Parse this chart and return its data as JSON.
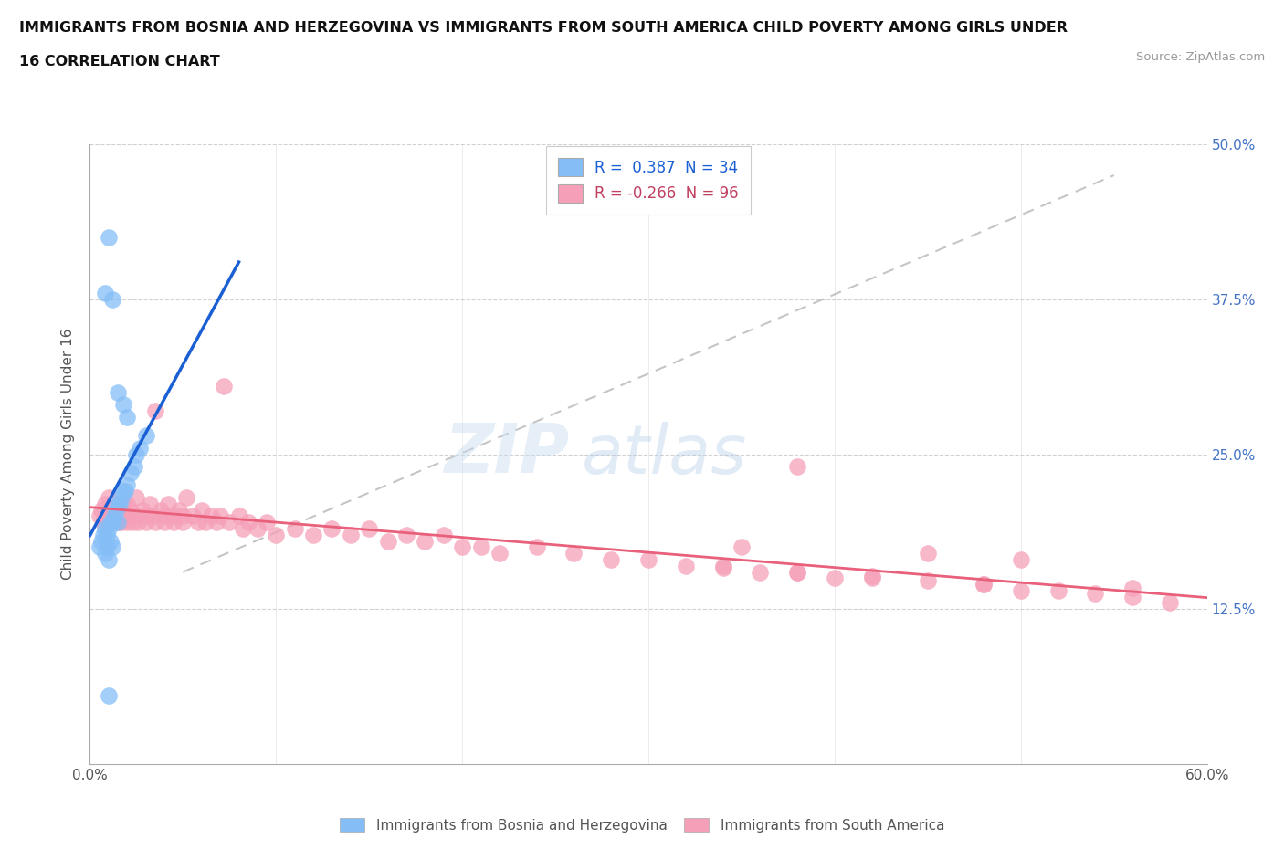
{
  "title_line1": "IMMIGRANTS FROM BOSNIA AND HERZEGOVINA VS IMMIGRANTS FROM SOUTH AMERICA CHILD POVERTY AMONG GIRLS UNDER",
  "title_line2": "16 CORRELATION CHART",
  "source": "Source: ZipAtlas.com",
  "ylabel": "Child Poverty Among Girls Under 16",
  "xlim": [
    0.0,
    0.6
  ],
  "ylim": [
    0.0,
    0.5
  ],
  "xticks": [
    0.0,
    0.1,
    0.2,
    0.3,
    0.4,
    0.5,
    0.6
  ],
  "xticklabels": [
    "0.0%",
    "",
    "",
    "",
    "",
    "",
    "60.0%"
  ],
  "yticks": [
    0.0,
    0.125,
    0.25,
    0.375,
    0.5
  ],
  "yticklabels_right": [
    "",
    "12.5%",
    "25.0%",
    "37.5%",
    "50.0%"
  ],
  "grid_color": "#cccccc",
  "watermark_top": "ZIP",
  "watermark_bot": "atlas",
  "blue_R": 0.387,
  "blue_N": 34,
  "pink_R": -0.266,
  "pink_N": 96,
  "blue_color": "#85bef7",
  "pink_color": "#f5a0b8",
  "blue_line_color": "#1a5fd4",
  "pink_line_color": "#e8607a",
  "dashed_line_color": "#bbbbbb",
  "legend_label_blue": "Immigrants from Bosnia and Herzegovina",
  "legend_label_pink": "Immigrants from South America",
  "background_color": "#ffffff",
  "blue_x": [
    0.005,
    0.006,
    0.007,
    0.008,
    0.008,
    0.009,
    0.009,
    0.01,
    0.01,
    0.011,
    0.011,
    0.012,
    0.012,
    0.013,
    0.014,
    0.015,
    0.015,
    0.016,
    0.017,
    0.018,
    0.019,
    0.02,
    0.022,
    0.024,
    0.025,
    0.027,
    0.03,
    0.008,
    0.01,
    0.012,
    0.015,
    0.018,
    0.02,
    0.01
  ],
  "blue_y": [
    0.175,
    0.18,
    0.185,
    0.17,
    0.19,
    0.175,
    0.185,
    0.165,
    0.19,
    0.18,
    0.195,
    0.175,
    0.195,
    0.2,
    0.205,
    0.195,
    0.21,
    0.21,
    0.215,
    0.22,
    0.22,
    0.225,
    0.235,
    0.24,
    0.25,
    0.255,
    0.265,
    0.38,
    0.425,
    0.375,
    0.3,
    0.29,
    0.28,
    0.055
  ],
  "pink_x": [
    0.005,
    0.006,
    0.007,
    0.008,
    0.009,
    0.01,
    0.01,
    0.011,
    0.012,
    0.012,
    0.013,
    0.014,
    0.015,
    0.015,
    0.016,
    0.017,
    0.018,
    0.019,
    0.02,
    0.02,
    0.021,
    0.022,
    0.023,
    0.025,
    0.025,
    0.026,
    0.028,
    0.03,
    0.03,
    0.032,
    0.034,
    0.035,
    0.035,
    0.038,
    0.04,
    0.04,
    0.042,
    0.045,
    0.045,
    0.048,
    0.05,
    0.05,
    0.052,
    0.055,
    0.058,
    0.06,
    0.062,
    0.065,
    0.068,
    0.07,
    0.072,
    0.075,
    0.08,
    0.082,
    0.085,
    0.09,
    0.095,
    0.1,
    0.11,
    0.12,
    0.13,
    0.14,
    0.15,
    0.16,
    0.17,
    0.18,
    0.19,
    0.2,
    0.21,
    0.22,
    0.24,
    0.26,
    0.28,
    0.3,
    0.32,
    0.34,
    0.36,
    0.38,
    0.4,
    0.42,
    0.45,
    0.48,
    0.5,
    0.52,
    0.54,
    0.56,
    0.58,
    0.34,
    0.38,
    0.42,
    0.48,
    0.38,
    0.35,
    0.45,
    0.5,
    0.56
  ],
  "pink_y": [
    0.2,
    0.205,
    0.195,
    0.21,
    0.2,
    0.195,
    0.215,
    0.205,
    0.2,
    0.195,
    0.21,
    0.2,
    0.195,
    0.205,
    0.2,
    0.195,
    0.21,
    0.2,
    0.195,
    0.21,
    0.2,
    0.205,
    0.195,
    0.215,
    0.2,
    0.195,
    0.205,
    0.2,
    0.195,
    0.21,
    0.2,
    0.285,
    0.195,
    0.205,
    0.2,
    0.195,
    0.21,
    0.2,
    0.195,
    0.205,
    0.2,
    0.195,
    0.215,
    0.2,
    0.195,
    0.205,
    0.195,
    0.2,
    0.195,
    0.2,
    0.305,
    0.195,
    0.2,
    0.19,
    0.195,
    0.19,
    0.195,
    0.185,
    0.19,
    0.185,
    0.19,
    0.185,
    0.19,
    0.18,
    0.185,
    0.18,
    0.185,
    0.175,
    0.175,
    0.17,
    0.175,
    0.17,
    0.165,
    0.165,
    0.16,
    0.16,
    0.155,
    0.155,
    0.15,
    0.15,
    0.148,
    0.145,
    0.14,
    0.14,
    0.138,
    0.135,
    0.13,
    0.158,
    0.155,
    0.152,
    0.145,
    0.24,
    0.175,
    0.17,
    0.165,
    0.142
  ]
}
